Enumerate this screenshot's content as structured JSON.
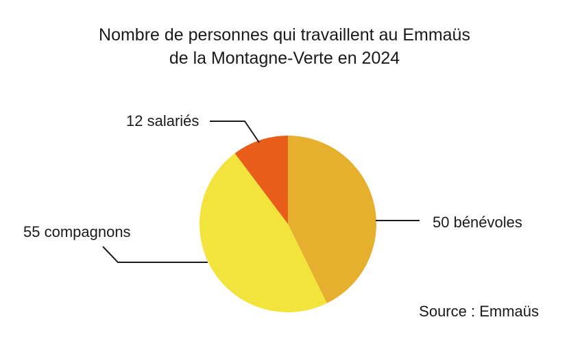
{
  "chart_data": {
    "type": "pie",
    "title": "Nombre de personnes qui travaillent au Emmaüs",
    "subtitle": "de la Montagne-Verte en 2024",
    "slices": [
      {
        "label": "50 bénévoles",
        "value": 50,
        "color": "#E6AF2E"
      },
      {
        "label": "55 compagnons",
        "value": 55,
        "color": "#F2E43C"
      },
      {
        "label": "12 salariés",
        "value": 12,
        "color": "#E85D1A"
      }
    ],
    "start_angle": "12 o'clock",
    "direction": "clockwise"
  },
  "source": "Source : Emmaüs"
}
